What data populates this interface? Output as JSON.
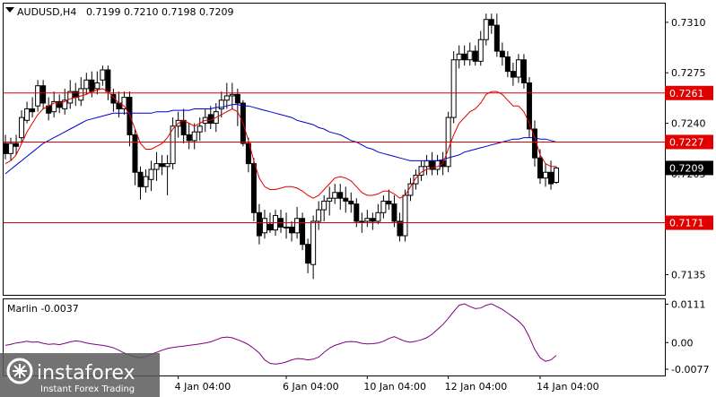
{
  "header": {
    "symbol": "AUDUSD,H4",
    "ohlc": "0.7199 0.7210 0.7198 0.7209"
  },
  "oscillator": {
    "label": "Marlin -0.0037"
  },
  "logo": {
    "name": "instaforex",
    "tagline": "Instant Forex Trading"
  },
  "colors": {
    "bull_body": "#ffffff",
    "bear_body": "#000000",
    "candle_outline": "#000000",
    "ma_fast": "#e00000",
    "ma_slow": "#0000cc",
    "level_line": "#dd0000",
    "oscillator_line": "#800080",
    "price_tag_red": "#e00000",
    "price_tag_current": "#000000"
  },
  "chart_data": [
    {
      "type": "candlestick",
      "symbol": "AUDUSD",
      "timeframe": "H4",
      "ylim": [
        0.7121,
        0.7323
      ],
      "y_ticks": [
        "0.7310",
        "0.7275",
        "0.7240",
        "0.7205",
        "0.7135"
      ],
      "x_ticks": [
        {
          "label": "4 Jan 04:00",
          "index": 32
        },
        {
          "label": "6 Jan 04:00",
          "index": 52
        },
        {
          "label": "10 Jan 04:00",
          "index": 67
        },
        {
          "label": "12 Jan 04:00",
          "index": 82
        },
        {
          "label": "14 Jan 04:00",
          "index": 99
        }
      ],
      "horizontal_levels": [
        {
          "label": "0.7261",
          "value": 0.7261
        },
        {
          "label": "0.7227",
          "value": 0.7227
        },
        {
          "label": "0.7171",
          "value": 0.7171
        }
      ],
      "current_price": {
        "label": "0.7209",
        "value": 0.7209
      },
      "candles": [
        [
          0.7226,
          0.7219,
          0.7232,
          0.7215
        ],
        [
          0.7219,
          0.7226,
          0.723,
          0.7214
        ],
        [
          0.7226,
          0.7224,
          0.7232,
          0.7218
        ],
        [
          0.723,
          0.7244,
          0.7249,
          0.7226
        ],
        [
          0.7242,
          0.725,
          0.7255,
          0.724
        ],
        [
          0.725,
          0.7248,
          0.7258,
          0.7244
        ],
        [
          0.7252,
          0.7266,
          0.727,
          0.7248
        ],
        [
          0.7266,
          0.7254,
          0.727,
          0.725
        ],
        [
          0.7252,
          0.7247,
          0.7258,
          0.7242
        ],
        [
          0.7248,
          0.7255,
          0.7262,
          0.7244
        ],
        [
          0.7255,
          0.7251,
          0.726,
          0.7247
        ],
        [
          0.725,
          0.7256,
          0.7264,
          0.7246
        ],
        [
          0.7254,
          0.7262,
          0.727,
          0.725
        ],
        [
          0.7262,
          0.7258,
          0.7268,
          0.7252
        ],
        [
          0.7256,
          0.7264,
          0.7272,
          0.7252
        ],
        [
          0.7264,
          0.727,
          0.7275,
          0.726
        ],
        [
          0.727,
          0.7262,
          0.7276,
          0.7258
        ],
        [
          0.7264,
          0.7268,
          0.7276,
          0.726
        ],
        [
          0.727,
          0.7277,
          0.728,
          0.7266
        ],
        [
          0.7277,
          0.7262,
          0.728,
          0.7256
        ],
        [
          0.726,
          0.7254,
          0.7264,
          0.7248
        ],
        [
          0.7254,
          0.725,
          0.7262,
          0.7244
        ],
        [
          0.725,
          0.7258,
          0.7262,
          0.7246
        ],
        [
          0.7258,
          0.7232,
          0.7262,
          0.7224
        ],
        [
          0.7232,
          0.7206,
          0.7236,
          0.7197
        ],
        [
          0.7206,
          0.7196,
          0.721,
          0.7187
        ],
        [
          0.7196,
          0.7203,
          0.7208,
          0.7192
        ],
        [
          0.7201,
          0.7208,
          0.7214,
          0.7193
        ],
        [
          0.7208,
          0.7212,
          0.722,
          0.72
        ],
        [
          0.7212,
          0.721,
          0.7218,
          0.7204
        ],
        [
          0.721,
          0.7212,
          0.7218,
          0.719
        ],
        [
          0.7212,
          0.7238,
          0.7244,
          0.7208
        ],
        [
          0.7238,
          0.7242,
          0.7248,
          0.723
        ],
        [
          0.7242,
          0.7232,
          0.725,
          0.7226
        ],
        [
          0.7232,
          0.7228,
          0.724,
          0.7222
        ],
        [
          0.7228,
          0.7234,
          0.724,
          0.7222
        ],
        [
          0.7234,
          0.7238,
          0.7244,
          0.7228
        ],
        [
          0.724,
          0.7244,
          0.725,
          0.7234
        ],
        [
          0.7246,
          0.724,
          0.7252,
          0.7236
        ],
        [
          0.724,
          0.7248,
          0.7254,
          0.7234
        ],
        [
          0.725,
          0.7256,
          0.7262,
          0.7244
        ],
        [
          0.7256,
          0.7259,
          0.7268,
          0.725
        ],
        [
          0.7259,
          0.726,
          0.7268,
          0.725
        ],
        [
          0.726,
          0.7254,
          0.7264,
          0.7238
        ],
        [
          0.7254,
          0.7226,
          0.7256,
          0.7224
        ],
        [
          0.7226,
          0.7212,
          0.723,
          0.7206
        ],
        [
          0.7212,
          0.7178,
          0.7216,
          0.7172
        ],
        [
          0.7178,
          0.7162,
          0.7184,
          0.7156
        ],
        [
          0.7164,
          0.7174,
          0.718,
          0.716
        ],
        [
          0.717,
          0.7166,
          0.7178,
          0.7164
        ],
        [
          0.7166,
          0.7176,
          0.718,
          0.7162
        ],
        [
          0.7174,
          0.7168,
          0.718,
          0.7164
        ],
        [
          0.7168,
          0.7168,
          0.7178,
          0.716
        ],
        [
          0.7168,
          0.7164,
          0.7172,
          0.7158
        ],
        [
          0.7164,
          0.7174,
          0.7182,
          0.716
        ],
        [
          0.7174,
          0.7156,
          0.7178,
          0.7152
        ],
        [
          0.7156,
          0.7143,
          0.716,
          0.7136
        ],
        [
          0.7142,
          0.7172,
          0.7176,
          0.7132
        ],
        [
          0.7172,
          0.718,
          0.7186,
          0.7166
        ],
        [
          0.718,
          0.7186,
          0.719,
          0.7172
        ],
        [
          0.7186,
          0.7188,
          0.7196,
          0.7176
        ],
        [
          0.7188,
          0.7192,
          0.7198,
          0.7184
        ],
        [
          0.7192,
          0.7188,
          0.7198,
          0.718
        ],
        [
          0.7188,
          0.7186,
          0.7196,
          0.7178
        ],
        [
          0.7186,
          0.7184,
          0.7192,
          0.7178
        ],
        [
          0.7184,
          0.7172,
          0.7188,
          0.7168
        ],
        [
          0.7172,
          0.7172,
          0.7178,
          0.7164
        ],
        [
          0.7172,
          0.7174,
          0.718,
          0.7168
        ],
        [
          0.7174,
          0.7172,
          0.7178,
          0.7166
        ],
        [
          0.7172,
          0.7178,
          0.7184,
          0.717
        ],
        [
          0.7178,
          0.7186,
          0.719,
          0.7174
        ],
        [
          0.7186,
          0.7184,
          0.7194,
          0.718
        ],
        [
          0.7184,
          0.7172,
          0.719,
          0.7168
        ],
        [
          0.7172,
          0.7162,
          0.7178,
          0.7158
        ],
        [
          0.7162,
          0.719,
          0.7194,
          0.7158
        ],
        [
          0.719,
          0.7198,
          0.7202,
          0.7186
        ],
        [
          0.7198,
          0.7204,
          0.7208,
          0.7194
        ],
        [
          0.7204,
          0.721,
          0.7214,
          0.72
        ],
        [
          0.721,
          0.7214,
          0.7218,
          0.7204
        ],
        [
          0.7214,
          0.7208,
          0.722,
          0.7204
        ],
        [
          0.7208,
          0.7214,
          0.7218,
          0.7204
        ],
        [
          0.7214,
          0.721,
          0.722,
          0.7204
        ],
        [
          0.721,
          0.7244,
          0.7248,
          0.7206
        ],
        [
          0.7244,
          0.7284,
          0.729,
          0.724
        ],
        [
          0.7284,
          0.7288,
          0.7294,
          0.7278
        ],
        [
          0.7288,
          0.7284,
          0.7294,
          0.728
        ],
        [
          0.7284,
          0.729,
          0.7296,
          0.728
        ],
        [
          0.729,
          0.7283,
          0.7294,
          0.728
        ],
        [
          0.7283,
          0.7298,
          0.7304,
          0.728
        ],
        [
          0.7298,
          0.7312,
          0.7316,
          0.7294
        ],
        [
          0.7312,
          0.7308,
          0.7316,
          0.7302
        ],
        [
          0.7308,
          0.729,
          0.7316,
          0.7286
        ],
        [
          0.729,
          0.7286,
          0.7296,
          0.728
        ],
        [
          0.7286,
          0.7276,
          0.729,
          0.7272
        ],
        [
          0.7276,
          0.7272,
          0.7282,
          0.7266
        ],
        [
          0.7272,
          0.7284,
          0.7288,
          0.7268
        ],
        [
          0.7284,
          0.7268,
          0.7288,
          0.7264
        ],
        [
          0.7268,
          0.7236,
          0.7272,
          0.723
        ],
        [
          0.7236,
          0.7216,
          0.7242,
          0.721
        ],
        [
          0.7216,
          0.7202,
          0.7222,
          0.7198
        ],
        [
          0.7202,
          0.7206,
          0.7212,
          0.7196
        ],
        [
          0.7206,
          0.7198,
          0.7214,
          0.7194
        ],
        [
          0.7199,
          0.7209,
          0.721,
          0.7198
        ]
      ],
      "ma_fast": [
        0.7212,
        0.7214,
        0.7218,
        0.7226,
        0.7234,
        0.724,
        0.7246,
        0.725,
        0.7252,
        0.7254,
        0.7254,
        0.7255,
        0.7257,
        0.7258,
        0.7259,
        0.726,
        0.7262,
        0.7263,
        0.7264,
        0.7262,
        0.7258,
        0.7254,
        0.7252,
        0.7246,
        0.7236,
        0.7226,
        0.7222,
        0.7222,
        0.7224,
        0.7226,
        0.723,
        0.7236,
        0.724,
        0.7242,
        0.724,
        0.7238,
        0.724,
        0.7242,
        0.7242,
        0.7244,
        0.7246,
        0.7248,
        0.725,
        0.7248,
        0.724,
        0.7228,
        0.7214,
        0.7202,
        0.7196,
        0.7194,
        0.7194,
        0.7195,
        0.7196,
        0.7196,
        0.7195,
        0.7193,
        0.719,
        0.7188,
        0.719,
        0.7194,
        0.7198,
        0.7202,
        0.7203,
        0.7202,
        0.72,
        0.7196,
        0.7192,
        0.719,
        0.719,
        0.7191,
        0.7193,
        0.7193,
        0.7191,
        0.7188,
        0.719,
        0.7196,
        0.7202,
        0.7206,
        0.7208,
        0.7209,
        0.721,
        0.7212,
        0.7222,
        0.7232,
        0.724,
        0.7244,
        0.7248,
        0.725,
        0.7254,
        0.726,
        0.7262,
        0.7262,
        0.726,
        0.7256,
        0.7252,
        0.7252,
        0.7248,
        0.724,
        0.723,
        0.7218,
        0.7212,
        0.721,
        0.721
      ],
      "ma_slow": [
        0.7205,
        0.7208,
        0.7211,
        0.7214,
        0.7217,
        0.722,
        0.7223,
        0.7226,
        0.7228,
        0.723,
        0.7232,
        0.7234,
        0.7236,
        0.7238,
        0.724,
        0.7242,
        0.7243,
        0.7244,
        0.7245,
        0.7246,
        0.7247,
        0.7247,
        0.7247,
        0.7247,
        0.7247,
        0.7247,
        0.7247,
        0.7247,
        0.7248,
        0.7248,
        0.7248,
        0.7249,
        0.7249,
        0.7249,
        0.7249,
        0.725,
        0.725,
        0.725,
        0.725,
        0.7251,
        0.7251,
        0.7252,
        0.7253,
        0.7253,
        0.7252,
        0.7252,
        0.7251,
        0.725,
        0.7249,
        0.7248,
        0.7247,
        0.7246,
        0.7245,
        0.7244,
        0.7242,
        0.7241,
        0.724,
        0.7239,
        0.7237,
        0.7236,
        0.7234,
        0.7233,
        0.7232,
        0.723,
        0.7228,
        0.7227,
        0.7225,
        0.7223,
        0.7222,
        0.722,
        0.7219,
        0.7218,
        0.7217,
        0.7216,
        0.7215,
        0.7214,
        0.7214,
        0.7214,
        0.7214,
        0.7214,
        0.7214,
        0.7215,
        0.7216,
        0.7217,
        0.7218,
        0.722,
        0.7221,
        0.7222,
        0.7223,
        0.7224,
        0.7225,
        0.7226,
        0.7227,
        0.7228,
        0.7229,
        0.7229,
        0.723,
        0.723,
        0.723,
        0.7229,
        0.7229,
        0.7228,
        0.7227
      ]
    },
    {
      "type": "line",
      "name": "Marlin",
      "ylim": [
        -0.0095,
        0.0125
      ],
      "y_ticks": [
        "0.0111",
        "0.00",
        "-0.0077"
      ],
      "values": [
        -0.0008,
        -0.0005,
        -0.0001,
        0.0001,
        0.0004,
        0.0001,
        0.0002,
        -0.0002,
        -0.0005,
        -0.0004,
        -0.0006,
        -0.0002,
        0.0002,
        0.0005,
        0.0003,
        -0.0001,
        -0.0004,
        -0.0006,
        -0.0008,
        -0.0011,
        -0.0015,
        -0.0022,
        -0.003,
        -0.0036,
        -0.0041,
        -0.0044,
        -0.004,
        -0.0034,
        -0.0028,
        -0.0022,
        -0.0017,
        -0.0014,
        -0.0012,
        -0.001,
        -0.0008,
        -0.0006,
        -0.0004,
        -0.0001,
        0.0002,
        0.0008,
        0.0014,
        0.0016,
        0.0014,
        0.0008,
        0.0002,
        -0.0006,
        -0.0017,
        -0.003,
        -0.005,
        -0.006,
        -0.0062,
        -0.006,
        -0.0056,
        -0.005,
        -0.0046,
        -0.0047,
        -0.005,
        -0.0048,
        -0.0042,
        -0.0028,
        -0.0016,
        -0.0008,
        -0.0003,
        0.0002,
        0.0003,
        0.0002,
        -0.0002,
        -0.0004,
        -0.0003,
        -0.0001,
        0.0004,
        0.0012,
        0.0017,
        0.001,
        0.0004,
        0.0001,
        0.0004,
        0.0008,
        0.0014,
        0.0024,
        0.0038,
        0.0052,
        0.007,
        0.009,
        0.0108,
        0.0112,
        0.0104,
        0.0098,
        0.01,
        0.0108,
        0.0112,
        0.0104,
        0.0096,
        0.0085,
        0.0074,
        0.0062,
        0.0046,
        0.0016,
        -0.002,
        -0.0044,
        -0.0054,
        -0.005,
        -0.0037
      ]
    }
  ]
}
